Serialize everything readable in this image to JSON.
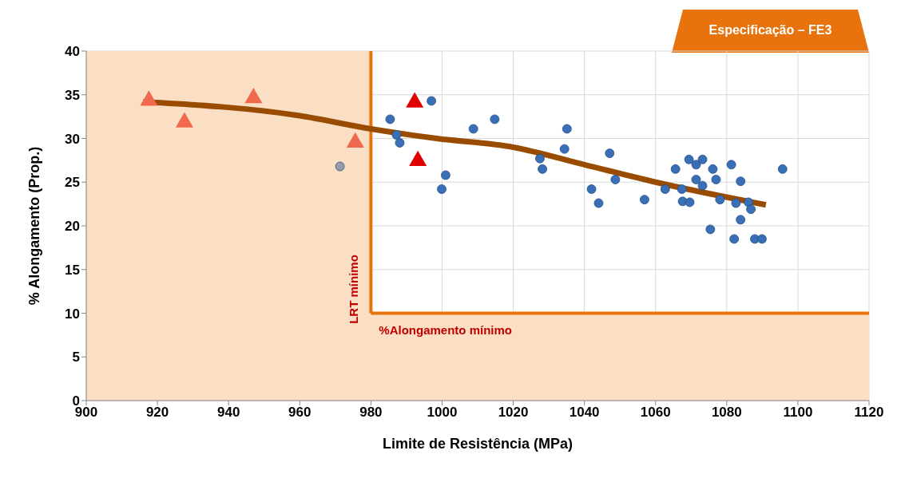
{
  "chart_data": {
    "type": "scatter",
    "xlabel": "Limite de Resistência (MPa)",
    "ylabel": "% Alongamento (Prop.)",
    "annotations": [
      "Especificação – FE3"
    ],
    "xlim": [
      900,
      1120
    ],
    "xticks": [
      900,
      920,
      940,
      960,
      980,
      1000,
      1020,
      1040,
      1060,
      1080,
      1100,
      1120
    ],
    "ylim": [
      0,
      40
    ],
    "yticks": [
      0,
      5,
      10,
      15,
      20,
      25,
      30,
      35,
      40
    ],
    "grid": true,
    "legend": false,
    "bands": [
      {
        "axis": "x",
        "from": 900,
        "to": 980,
        "color": "#fadfc5"
      },
      {
        "axis": "y",
        "from": 0,
        "to": 10,
        "color": "#fadfc5"
      }
    ],
    "ref_lines": [
      {
        "axis": "x",
        "value": 980,
        "label": "LRT mínimo",
        "color": "#e8730c"
      },
      {
        "axis": "y",
        "value": 10,
        "label": "%Alongamento mínimo",
        "color": "#e8730c"
      }
    ],
    "series": [
      {
        "marker": "circle",
        "color": "#3a6fb5",
        "x": [
          985.4,
          987.2,
          988.1,
          997.0,
          999.9,
          1001,
          1008.8,
          1014.8,
          1027.5,
          1028.2,
          1034.4,
          1035.1,
          1042,
          1044,
          1047.1,
          1048.7,
          1056.9,
          1062.7,
          1065.6,
          1067.4,
          1067.6,
          1069.4,
          1069.6,
          1071.4,
          1071.4,
          1073.2,
          1073.2,
          1075.4,
          1076.1,
          1077,
          1078.1,
          1081.3,
          1082.1,
          1082.6,
          1083.9,
          1083.9,
          1086.1,
          1086.8,
          1087.9,
          1089.9,
          1095.7
        ],
        "values": [
          32.2,
          30.4,
          29.5,
          34.3,
          24.2,
          25.8,
          31.1,
          32.2,
          27.7,
          26.5,
          28.8,
          31.1,
          24.2,
          22.6,
          28.3,
          25.3,
          23.0,
          24.2,
          26.5,
          24.2,
          22.8,
          27.6,
          22.7,
          27.0,
          25.3,
          27.6,
          24.6,
          19.6,
          26.5,
          25.3,
          23.0,
          27.0,
          18.5,
          22.6,
          25.1,
          20.7,
          22.7,
          21.9,
          18.5,
          18.5,
          26.5
        ]
      },
      {
        "marker": "circle",
        "color": "#9a9aa6",
        "x": [
          971.3
        ],
        "values": [
          26.8
        ]
      },
      {
        "marker": "triangle",
        "color": "#f0684e",
        "x": [
          917.6,
          927.6,
          947,
          975.6
        ],
        "values": [
          34.5,
          32.0,
          34.8,
          29.7
        ]
      },
      {
        "marker": "triangle",
        "color": "#e00000",
        "x": [
          992.3,
          993.2
        ],
        "values": [
          34.3,
          27.6
        ]
      },
      {
        "type": "line",
        "marker": "none",
        "color": "#994c00",
        "x": [
          916,
          960,
          980,
          998.5,
          1020,
          1040,
          1060,
          1091
        ],
        "values": [
          34.2,
          32.6,
          31.1,
          30.0,
          29.0,
          27.0,
          25.0,
          22.4
        ]
      }
    ]
  }
}
